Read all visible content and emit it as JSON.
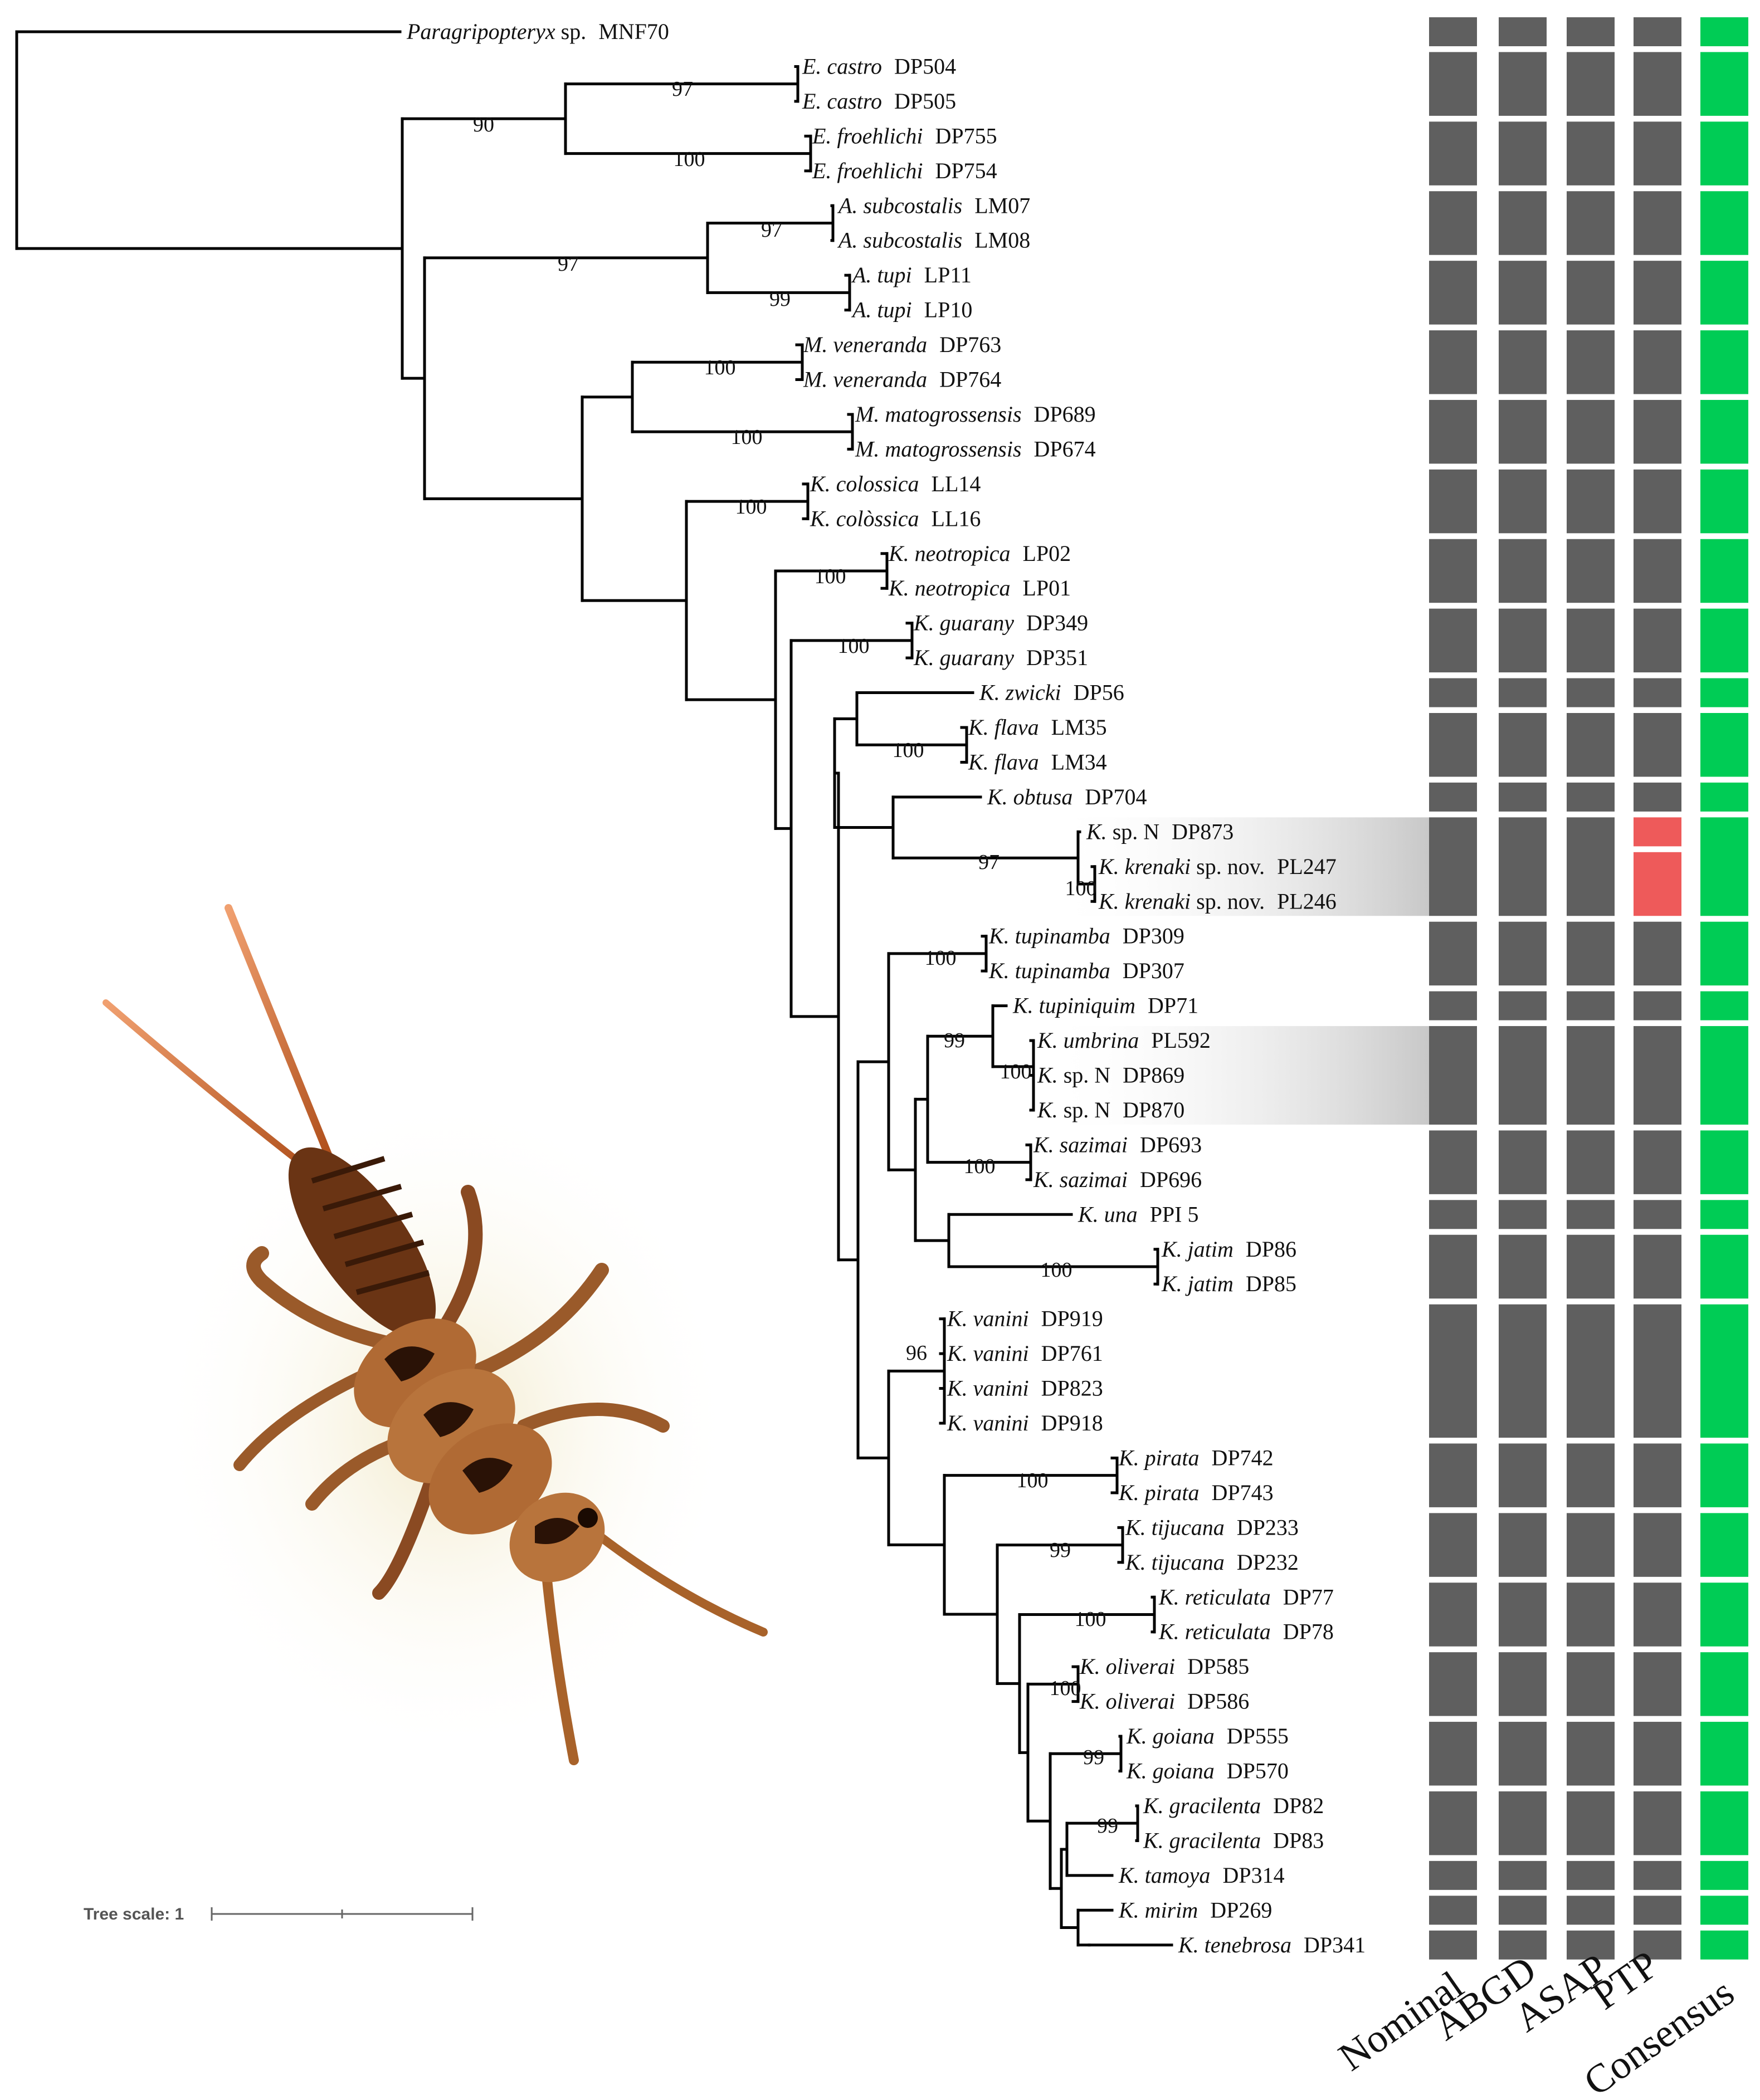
{
  "tree": {
    "taxa": [
      {
        "species": "Paragripopteryx",
        "suffix": "sp.",
        "id": "MNF70"
      },
      {
        "species": "E. castro",
        "id": "DP504"
      },
      {
        "species": "E. castro",
        "id": "DP505"
      },
      {
        "species": "E. froehlichi",
        "id": "DP755"
      },
      {
        "species": "E. froehlichi",
        "id": "DP754"
      },
      {
        "species": "A. subcostalis",
        "id": "LM07"
      },
      {
        "species": "A. subcostalis",
        "id": "LM08"
      },
      {
        "species": "A. tupi",
        "id": "LP11"
      },
      {
        "species": "A. tupi",
        "id": "LP10"
      },
      {
        "species": "M. veneranda",
        "id": "DP763"
      },
      {
        "species": "M. veneranda",
        "id": "DP764"
      },
      {
        "species": "M. matogrossensis",
        "id": "DP689"
      },
      {
        "species": "M. matogrossensis",
        "id": "DP674"
      },
      {
        "species": "K. colossica",
        "id": "LL14"
      },
      {
        "species": "K. colòssica",
        "id": "LL16"
      },
      {
        "species": "K. neotropica",
        "id": "LP02"
      },
      {
        "species": "K. neotropica",
        "id": "LP01"
      },
      {
        "species": "K. guarany",
        "id": "DP349"
      },
      {
        "species": "K. guarany",
        "id": "DP351"
      },
      {
        "species": "K. zwicki",
        "id": "DP56"
      },
      {
        "species": "K. flava",
        "id": "LM35"
      },
      {
        "species": "K. flava",
        "id": "LM34"
      },
      {
        "species": "K. obtusa",
        "id": "DP704"
      },
      {
        "species": "K.",
        "suffix": "sp.  N",
        "id": "DP873"
      },
      {
        "species": "K. krenaki",
        "suffix": "sp. nov.",
        "id": "PL247"
      },
      {
        "species": "K. krenaki",
        "suffix": "sp. nov.",
        "id": "PL246"
      },
      {
        "species": "K. tupinamba",
        "id": "DP309"
      },
      {
        "species": "K. tupinamba",
        "id": "DP307"
      },
      {
        "species": "K. tupiniquim",
        "id": "DP71"
      },
      {
        "species": "K. umbrina",
        "id": "PL592"
      },
      {
        "species": "K.",
        "suffix": "sp.  N",
        "id": "DP869"
      },
      {
        "species": "K.",
        "suffix": "sp.  N",
        "id": "DP870"
      },
      {
        "species": "K. sazimai",
        "id": "DP693"
      },
      {
        "species": "K. sazimai",
        "id": "DP696"
      },
      {
        "species": "K. una",
        "id": "PPI 5"
      },
      {
        "species": "K. jatim",
        "id": "DP86"
      },
      {
        "species": "K. jatim",
        "id": "DP85"
      },
      {
        "species": "K. vanini",
        "id": "DP919"
      },
      {
        "species": "K. vanini",
        "id": "DP761"
      },
      {
        "species": "K. vanini",
        "id": "DP823"
      },
      {
        "species": "K. vanini",
        "id": "DP918"
      },
      {
        "species": "K. pirata",
        "id": "DP742"
      },
      {
        "species": "K. pirata",
        "id": "DP743"
      },
      {
        "species": "K. tijucana",
        "id": "DP233"
      },
      {
        "species": "K. tijucana",
        "id": "DP232"
      },
      {
        "species": "K. reticulata",
        "id": "DP77"
      },
      {
        "species": "K. reticulata",
        "id": "DP78"
      },
      {
        "species": "K. oliverai",
        "id": "DP585"
      },
      {
        "species": "K. oliverai",
        "id": "DP586"
      },
      {
        "species": "K. goiana",
        "id": "DP555"
      },
      {
        "species": "K. goiana",
        "id": "DP570"
      },
      {
        "species": "K. gracilenta",
        "id": "DP82"
      },
      {
        "species": "K. gracilenta",
        "id": "DP83"
      },
      {
        "species": "K. tamoya",
        "id": "DP314"
      },
      {
        "species": "K. mirim",
        "id": "DP269"
      },
      {
        "species": "K. tenebrosa",
        "id": "DP341"
      }
    ],
    "bootstrap_values": [
      "90",
      "97",
      "100",
      "97",
      "97",
      "99",
      "100",
      "100",
      "100",
      "100",
      "100",
      "100",
      "97",
      "100",
      "100",
      "99",
      "100",
      "100",
      "100",
      "96",
      "100",
      "99",
      "100",
      "100",
      "99",
      "99"
    ],
    "scale_label": "Tree scale: 1"
  },
  "delimitation": {
    "columns": [
      "Nominal",
      "ABGD",
      "ASAP",
      "PTP",
      "Consensus"
    ],
    "colors": {
      "gray": "#5f5f5f",
      "green": "#00cc55",
      "red": "#ee5a5a"
    },
    "groups": [
      {
        "rows": [
          0,
          0
        ],
        "values": [
          "gray",
          "gray",
          "gray",
          "gray",
          "green"
        ]
      },
      {
        "rows": [
          1,
          2
        ],
        "values": [
          "gray",
          "gray",
          "gray",
          "gray",
          "green"
        ]
      },
      {
        "rows": [
          3,
          4
        ],
        "values": [
          "gray",
          "gray",
          "gray",
          "gray",
          "green"
        ]
      },
      {
        "rows": [
          5,
          6
        ],
        "values": [
          "gray",
          "gray",
          "gray",
          "gray",
          "green"
        ]
      },
      {
        "rows": [
          7,
          8
        ],
        "values": [
          "gray",
          "gray",
          "gray",
          "gray",
          "green"
        ]
      },
      {
        "rows": [
          9,
          10
        ],
        "values": [
          "gray",
          "gray",
          "gray",
          "gray",
          "green"
        ]
      },
      {
        "rows": [
          11,
          12
        ],
        "values": [
          "gray",
          "gray",
          "gray",
          "gray",
          "green"
        ]
      },
      {
        "rows": [
          13,
          14
        ],
        "values": [
          "gray",
          "gray",
          "gray",
          "gray",
          "green"
        ]
      },
      {
        "rows": [
          15,
          16
        ],
        "values": [
          "gray",
          "gray",
          "gray",
          "gray",
          "green"
        ]
      },
      {
        "rows": [
          17,
          18
        ],
        "values": [
          "gray",
          "gray",
          "gray",
          "gray",
          "green"
        ]
      },
      {
        "rows": [
          19,
          19
        ],
        "values": [
          "gray",
          "gray",
          "gray",
          "gray",
          "green"
        ]
      },
      {
        "rows": [
          20,
          21
        ],
        "values": [
          "gray",
          "gray",
          "gray",
          "gray",
          "green"
        ]
      },
      {
        "rows": [
          22,
          22
        ],
        "values": [
          "gray",
          "gray",
          "gray",
          "gray",
          "green"
        ]
      },
      {
        "rows": [
          23,
          25
        ],
        "values": [
          "gray",
          "gray",
          "gray",
          "split",
          "green"
        ],
        "ptp_split": [
          {
            "rows": [
              23,
              23
            ],
            "color": "red"
          },
          {
            "rows": [
              24,
              25
            ],
            "color": "red"
          }
        ]
      },
      {
        "rows": [
          26,
          27
        ],
        "values": [
          "gray",
          "gray",
          "gray",
          "gray",
          "green"
        ]
      },
      {
        "rows": [
          28,
          28
        ],
        "values": [
          "gray",
          "gray",
          "gray",
          "gray",
          "green"
        ]
      },
      {
        "rows": [
          29,
          31
        ],
        "values": [
          "gray",
          "gray",
          "gray",
          "gray",
          "green"
        ]
      },
      {
        "rows": [
          32,
          33
        ],
        "values": [
          "gray",
          "gray",
          "gray",
          "gray",
          "green"
        ]
      },
      {
        "rows": [
          34,
          34
        ],
        "values": [
          "gray",
          "gray",
          "gray",
          "gray",
          "green"
        ]
      },
      {
        "rows": [
          35,
          36
        ],
        "values": [
          "gray",
          "gray",
          "gray",
          "gray",
          "green"
        ]
      },
      {
        "rows": [
          37,
          40
        ],
        "values": [
          "gray",
          "gray",
          "gray",
          "gray",
          "green"
        ]
      },
      {
        "rows": [
          41,
          42
        ],
        "values": [
          "gray",
          "gray",
          "gray",
          "gray",
          "green"
        ]
      },
      {
        "rows": [
          43,
          44
        ],
        "values": [
          "gray",
          "gray",
          "gray",
          "gray",
          "green"
        ]
      },
      {
        "rows": [
          45,
          46
        ],
        "values": [
          "gray",
          "gray",
          "gray",
          "gray",
          "green"
        ]
      },
      {
        "rows": [
          47,
          48
        ],
        "values": [
          "gray",
          "gray",
          "gray",
          "gray",
          "green"
        ]
      },
      {
        "rows": [
          49,
          50
        ],
        "values": [
          "gray",
          "gray",
          "gray",
          "gray",
          "green"
        ]
      },
      {
        "rows": [
          51,
          52
        ],
        "values": [
          "gray",
          "gray",
          "gray",
          "gray",
          "green"
        ]
      },
      {
        "rows": [
          53,
          53
        ],
        "values": [
          "gray",
          "gray",
          "gray",
          "gray",
          "green"
        ]
      },
      {
        "rows": [
          54,
          54
        ],
        "values": [
          "gray",
          "gray",
          "gray",
          "gray",
          "green"
        ]
      },
      {
        "rows": [
          55,
          55
        ],
        "values": [
          "gray",
          "gray",
          "gray",
          "gray",
          "green"
        ]
      }
    ],
    "highlighted_groups": [
      13,
      16
    ]
  },
  "illustration": {
    "subject": "stonefly-nymph-illustration"
  }
}
